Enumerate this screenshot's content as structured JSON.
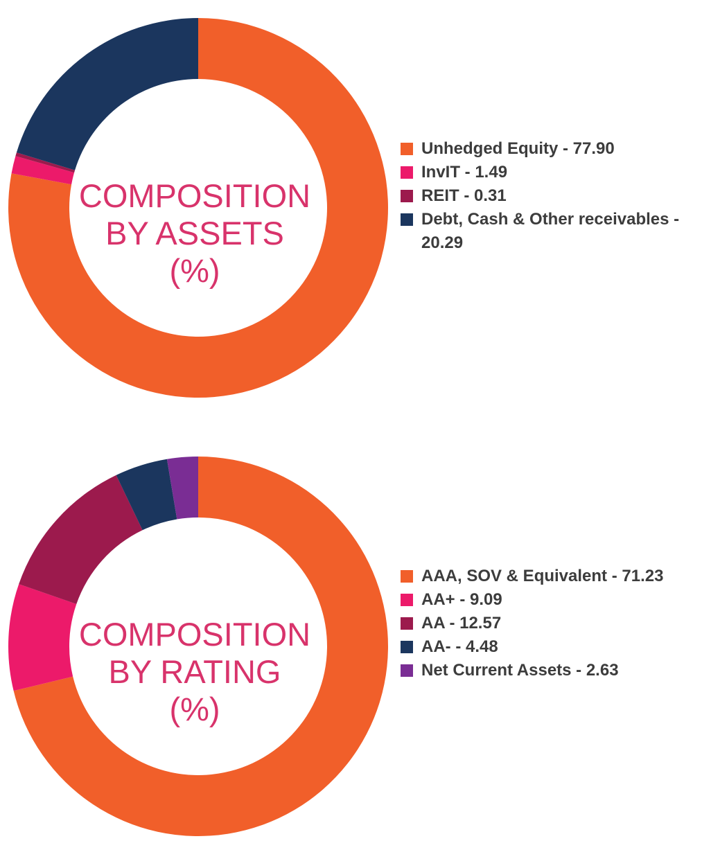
{
  "chart_data": [
    {
      "type": "pie",
      "title": [
        "COMPOSITION",
        "BY ASSETS",
        "(%)"
      ],
      "slices": [
        {
          "label": "Unhedged Equity - 77.90",
          "value": 77.9,
          "color": "#f15f2a"
        },
        {
          "label": "InvIT - 1.49",
          "value": 1.49,
          "color": "#ec1a6a"
        },
        {
          "label": "REIT - 0.31",
          "value": 0.31,
          "color": "#9c1a4d"
        },
        {
          "label": "Debt, Cash & Other receivables - 20.29",
          "value": 20.29,
          "color": "#1b365e"
        }
      ],
      "legend_position": "right"
    },
    {
      "type": "pie",
      "title": [
        "COMPOSITION",
        "BY RATING",
        "(%)"
      ],
      "slices": [
        {
          "label": "AAA, SOV & Equivalent - 71.23",
          "value": 71.23,
          "color": "#f15f2a"
        },
        {
          "label": "AA+ - 9.09",
          "value": 9.09,
          "color": "#ec1a6a"
        },
        {
          "label": "AA - 12.57",
          "value": 12.57,
          "color": "#9c1a4d"
        },
        {
          "label": "AA- - 4.48",
          "value": 4.48,
          "color": "#1b365e"
        },
        {
          "label": "Net Current Assets - 2.63",
          "value": 2.63,
          "color": "#7a2d94"
        }
      ],
      "legend_position": "right"
    }
  ]
}
